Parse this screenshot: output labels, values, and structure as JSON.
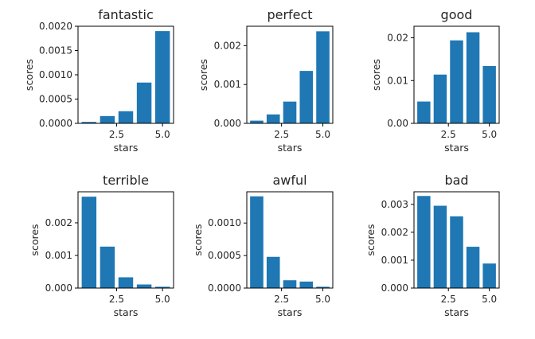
{
  "figure": {
    "background": "#ffffff",
    "bar_color": "#1f77b4"
  },
  "chart_data": [
    {
      "type": "bar",
      "title": "fantastic",
      "xlabel": "stars",
      "ylabel": "scores",
      "x": [
        1,
        2,
        3,
        4,
        5
      ],
      "values": [
        3e-05,
        0.00015,
        0.00025,
        0.00084,
        0.0019
      ],
      "xlim": [
        0.4,
        5.6
      ],
      "ylim": [
        0,
        0.002
      ],
      "xticks": [
        2.5,
        5.0
      ],
      "xtick_labels": [
        "2.5",
        "5.0"
      ],
      "yticks": [
        0,
        0.0005,
        0.001,
        0.0015,
        0.002
      ],
      "ytick_labels": [
        "0.0000",
        "0.0005",
        "0.0010",
        "0.0015",
        "0.0020"
      ],
      "grid": false
    },
    {
      "type": "bar",
      "title": "perfect",
      "xlabel": "stars",
      "ylabel": "scores",
      "x": [
        1,
        2,
        3,
        4,
        5
      ],
      "values": [
        7e-05,
        0.00023,
        0.00056,
        0.00135,
        0.00237
      ],
      "xlim": [
        0.4,
        5.6
      ],
      "ylim": [
        0,
        0.0025
      ],
      "xticks": [
        2.5,
        5.0
      ],
      "xtick_labels": [
        "2.5",
        "5.0"
      ],
      "yticks": [
        0,
        0.001,
        0.002
      ],
      "ytick_labels": [
        "0.000",
        "0.001",
        "0.002"
      ],
      "grid": false
    },
    {
      "type": "bar",
      "title": "good",
      "xlabel": "stars",
      "ylabel": "scores",
      "x": [
        1,
        2,
        3,
        4,
        5
      ],
      "values": [
        0.0051,
        0.0114,
        0.0194,
        0.0213,
        0.0134
      ],
      "xlim": [
        0.4,
        5.6
      ],
      "ylim": [
        0,
        0.0227
      ],
      "xticks": [
        2.5,
        5.0
      ],
      "xtick_labels": [
        "2.5",
        "5.0"
      ],
      "yticks": [
        0,
        0.01,
        0.02
      ],
      "ytick_labels": [
        "0.00",
        "0.01",
        "0.02"
      ],
      "grid": false
    },
    {
      "type": "bar",
      "title": "terrible",
      "xlabel": "stars",
      "ylabel": "scores",
      "x": [
        1,
        2,
        3,
        4,
        5
      ],
      "values": [
        0.0028,
        0.00127,
        0.00033,
        0.00011,
        4e-05
      ],
      "xlim": [
        0.4,
        5.6
      ],
      "ylim": [
        0,
        0.00295
      ],
      "xticks": [
        2.5,
        5.0
      ],
      "xtick_labels": [
        "2.5",
        "5.0"
      ],
      "yticks": [
        0,
        0.001,
        0.002
      ],
      "ytick_labels": [
        "0.000",
        "0.001",
        "0.002"
      ],
      "grid": false
    },
    {
      "type": "bar",
      "title": "awful",
      "xlabel": "stars",
      "ylabel": "scores",
      "x": [
        1,
        2,
        3,
        4,
        5
      ],
      "values": [
        0.00141,
        0.00048,
        0.00012,
        0.0001,
        2e-05
      ],
      "xlim": [
        0.4,
        5.6
      ],
      "ylim": [
        0,
        0.00148
      ],
      "xticks": [
        2.5,
        5.0
      ],
      "xtick_labels": [
        "2.5",
        "5.0"
      ],
      "yticks": [
        0,
        0.0005,
        0.001
      ],
      "ytick_labels": [
        "0.0000",
        "0.0005",
        "0.0010"
      ],
      "grid": false
    },
    {
      "type": "bar",
      "title": "bad",
      "xlabel": "stars",
      "ylabel": "scores",
      "x": [
        1,
        2,
        3,
        4,
        5
      ],
      "values": [
        0.0033,
        0.00295,
        0.00257,
        0.00148,
        0.00088
      ],
      "xlim": [
        0.4,
        5.6
      ],
      "ylim": [
        0,
        0.00345
      ],
      "xticks": [
        2.5,
        5.0
      ],
      "xtick_labels": [
        "2.5",
        "5.0"
      ],
      "yticks": [
        0,
        0.001,
        0.002,
        0.003
      ],
      "ytick_labels": [
        "0.000",
        "0.001",
        "0.002",
        "0.003"
      ],
      "grid": false
    }
  ]
}
